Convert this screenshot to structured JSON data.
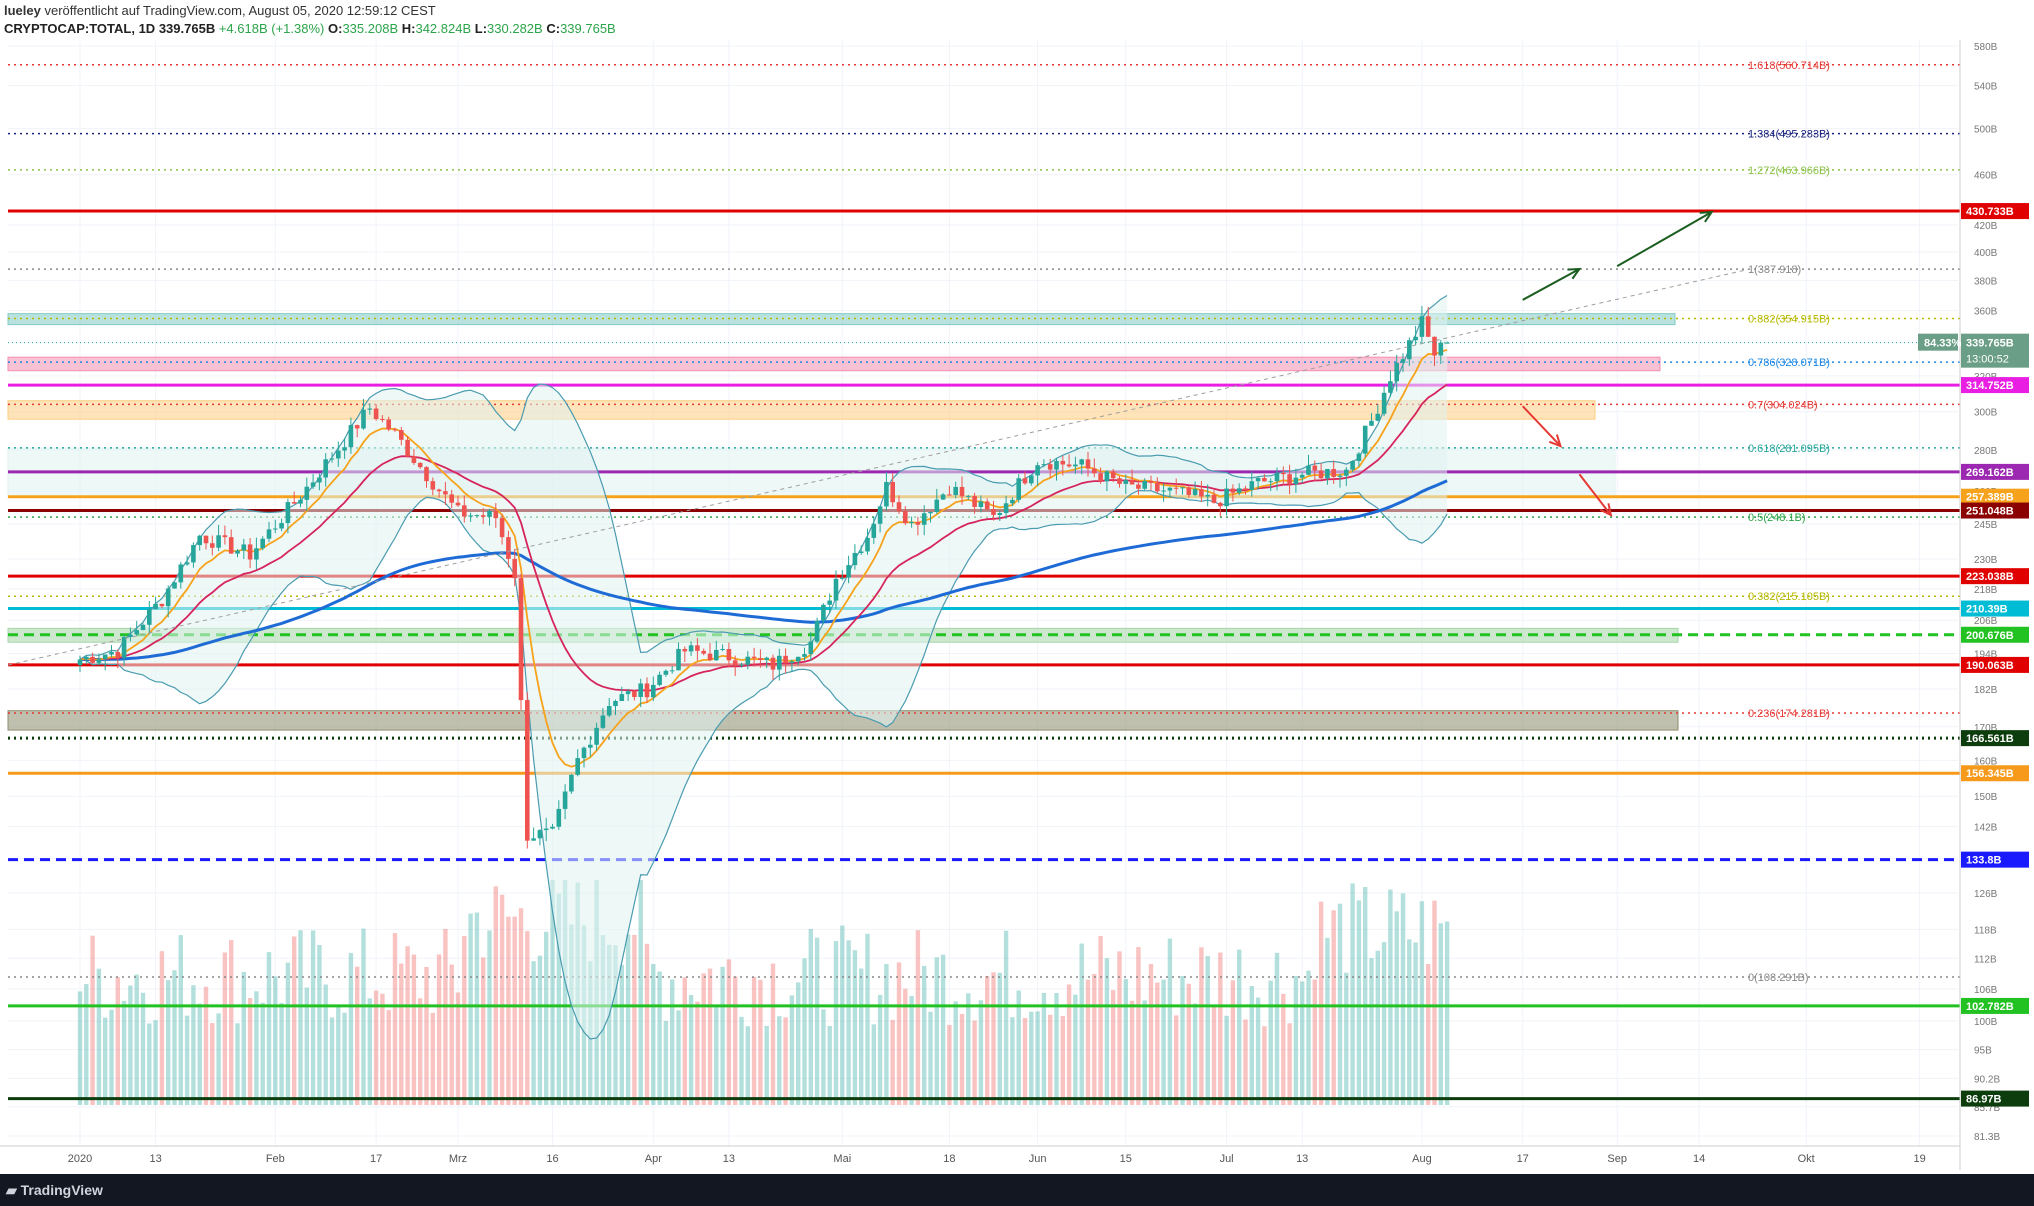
{
  "header": {
    "publisher_line": {
      "user": "lueley",
      "rest": " veröffentlicht auf TradingView.com, August 05, 2020 12:59:12 CEST"
    },
    "symbol": "CRYPTOCAP:TOTAL, 1D",
    "last": "339.765B",
    "change": "+4.618B (+1.38%)",
    "ohlc": [
      {
        "k": "O:",
        "v": "335.208B"
      },
      {
        "k": "H:",
        "v": "342.824B"
      },
      {
        "k": "L:",
        "v": "330.282B"
      },
      {
        "k": "C:",
        "v": "339.765B"
      }
    ]
  },
  "footer": {
    "brand": "TradingView"
  },
  "colors": {
    "up": "#26a69a",
    "down": "#ef5350",
    "ema_fast": "#f7a21b",
    "ema_mid": "#d6245c",
    "sma200": "#1e6bd6",
    "bollinger": "#4a9bb0",
    "volume_ma": "#f79a5c"
  },
  "chart_data": {
    "type": "candlestick",
    "title": "",
    "price_scale": "log",
    "ylim": [
      "81.3B",
      "580B"
    ],
    "y_ticks": [
      "580B",
      "540B",
      "500B",
      "460B",
      "420B",
      "400B",
      "380B",
      "360B",
      "340B",
      "320B",
      "300B",
      "280B",
      "260B",
      "245B",
      "230B",
      "218B",
      "206B",
      "194B",
      "182B",
      "170B",
      "160B",
      "150B",
      "142B",
      "134B",
      "126B",
      "118B",
      "112B",
      "106B",
      "100B",
      "95B",
      "90.2B",
      "85.7B",
      "81.3B"
    ],
    "x_ticks": [
      "2020",
      "13",
      "Feb",
      "17",
      "Mrz",
      "16",
      "Apr",
      "13",
      "Mai",
      "18",
      "Jun",
      "15",
      "Jul",
      "13",
      "Aug",
      "17",
      "Sep",
      "14",
      "Okt",
      "19"
    ],
    "horizontal_levels": [
      {
        "label": "1.618(560.714B)",
        "value": 560.714,
        "color": "#e53935",
        "style": "dotted",
        "kind": "fib"
      },
      {
        "label": "1.384(495.283B)",
        "value": 495.283,
        "color": "#1a237e",
        "style": "dotted",
        "kind": "fib"
      },
      {
        "label": "1.272(463.966B)",
        "value": 463.966,
        "color": "#8bc34a",
        "style": "dotted",
        "kind": "fib"
      },
      {
        "label": "430.733B",
        "value": 430.733,
        "color": "#e00000",
        "style": "solid",
        "kind": "axis"
      },
      {
        "label": "1(387.918)",
        "value": 387.918,
        "color": "#888888",
        "style": "dotted",
        "kind": "fib"
      },
      {
        "label": "0.882(354.915B)",
        "value": 354.915,
        "color": "#b5b800",
        "style": "dotted",
        "kind": "fib"
      },
      {
        "label": "0.786(328.071B)",
        "value": 328.071,
        "color": "#1e88e5",
        "style": "dotted",
        "kind": "fib"
      },
      {
        "label": "314.752B",
        "value": 314.752,
        "color": "#e91ee3",
        "style": "solid",
        "kind": "axis"
      },
      {
        "label": "0.7(304.024B)",
        "value": 304.024,
        "color": "#e53935",
        "style": "dotted",
        "kind": "fib"
      },
      {
        "label": "0.618(281.095B)",
        "value": 281.095,
        "color": "#26a69a",
        "style": "dotted",
        "kind": "fib"
      },
      {
        "label": "269.162B",
        "value": 269.162,
        "color": "#9c27b0",
        "style": "solid",
        "kind": "axis"
      },
      {
        "label": "257.389B",
        "value": 257.389,
        "color": "#f7a21b",
        "style": "solid",
        "kind": "axis"
      },
      {
        "label": "251.048B",
        "value": 251.048,
        "color": "#8b0000",
        "style": "solid",
        "kind": "axis"
      },
      {
        "label": "0.5(248.1B)",
        "value": 248.1,
        "color": "#2ca44a",
        "style": "dotted",
        "kind": "fib"
      },
      {
        "label": "223.038B",
        "value": 223.038,
        "color": "#e00000",
        "style": "solid",
        "kind": "axis"
      },
      {
        "label": "0.382(215.105B)",
        "value": 215.105,
        "color": "#b5b800",
        "style": "dotted",
        "kind": "fib"
      },
      {
        "label": "210.39B",
        "value": 210.39,
        "color": "#00bcd4",
        "style": "solid",
        "kind": "axis"
      },
      {
        "label": "200.676B",
        "value": 200.676,
        "color": "#22c222",
        "style": "dashed",
        "kind": "axis"
      },
      {
        "label": "190.063B",
        "value": 190.063,
        "color": "#e00000",
        "style": "solid",
        "kind": "axis"
      },
      {
        "label": "0.236(174.281B)",
        "value": 174.281,
        "color": "#e53935",
        "style": "dotted",
        "kind": "fib"
      },
      {
        "label": "166.561B",
        "value": 166.561,
        "color": "#0d3d0d",
        "style": "dotted",
        "kind": "axis"
      },
      {
        "label": "156.345B",
        "value": 156.345,
        "color": "#f79a1b",
        "style": "solid",
        "kind": "axis"
      },
      {
        "label": "133.8B",
        "value": 133.8,
        "color": "#1a1aff",
        "style": "dashed",
        "kind": "axis"
      },
      {
        "label": "0(108.291B)",
        "value": 108.291,
        "color": "#888888",
        "style": "dotted",
        "kind": "fib"
      },
      {
        "label": "102.782B",
        "value": 102.782,
        "color": "#22c222",
        "style": "solid",
        "kind": "axis"
      },
      {
        "label": "86.97B",
        "value": 86.97,
        "color": "#0d3d0d",
        "style": "solid",
        "kind": "axis"
      }
    ],
    "zones": [
      {
        "name": "teal-band",
        "low": 351,
        "high": 358,
        "color": "#80cbc4"
      },
      {
        "name": "pink-band",
        "low": 323,
        "high": 331,
        "color": "#f48fb1"
      },
      {
        "name": "orange-band",
        "low": 296,
        "high": 306,
        "color": "#ffcc80"
      },
      {
        "name": "light-band",
        "low": 257,
        "high": 281,
        "color": "#e0f2f1"
      },
      {
        "name": "green-band",
        "low": 198,
        "high": 203,
        "color": "#a5d6a7"
      },
      {
        "name": "olive-band",
        "low": 169,
        "high": 175,
        "color": "#8d8d6e"
      }
    ],
    "current_price_tag": {
      "value": 339.765,
      "label": "339.765B",
      "percent": "84.33%",
      "countdown": "13:00:52"
    },
    "close_series": [
      {
        "date": "2020-01-01",
        "close": 192
      },
      {
        "date": "2020-01-07",
        "close": 195
      },
      {
        "date": "2020-01-14",
        "close": 214
      },
      {
        "date": "2020-01-20",
        "close": 240
      },
      {
        "date": "2020-01-28",
        "close": 232
      },
      {
        "date": "2020-02-05",
        "close": 258
      },
      {
        "date": "2020-02-12",
        "close": 285
      },
      {
        "date": "2020-02-16",
        "close": 302
      },
      {
        "date": "2020-02-20",
        "close": 288
      },
      {
        "date": "2020-02-25",
        "close": 268
      },
      {
        "date": "2020-03-01",
        "close": 250
      },
      {
        "date": "2020-03-07",
        "close": 248
      },
      {
        "date": "2020-03-10",
        "close": 224
      },
      {
        "date": "2020-03-12",
        "close": 140
      },
      {
        "date": "2020-03-16",
        "close": 140
      },
      {
        "date": "2020-03-20",
        "close": 160
      },
      {
        "date": "2020-03-25",
        "close": 178
      },
      {
        "date": "2020-03-31",
        "close": 182
      },
      {
        "date": "2020-04-06",
        "close": 195
      },
      {
        "date": "2020-04-13",
        "close": 193
      },
      {
        "date": "2020-04-20",
        "close": 190
      },
      {
        "date": "2020-04-26",
        "close": 198
      },
      {
        "date": "2020-04-30",
        "close": 222
      },
      {
        "date": "2020-05-05",
        "close": 240
      },
      {
        "date": "2020-05-08",
        "close": 262
      },
      {
        "date": "2020-05-12",
        "close": 245
      },
      {
        "date": "2020-05-18",
        "close": 262
      },
      {
        "date": "2020-05-25",
        "close": 248
      },
      {
        "date": "2020-06-01",
        "close": 275
      },
      {
        "date": "2020-06-08",
        "close": 272
      },
      {
        "date": "2020-06-15",
        "close": 262
      },
      {
        "date": "2020-06-22",
        "close": 260
      },
      {
        "date": "2020-06-29",
        "close": 255
      },
      {
        "date": "2020-07-06",
        "close": 264
      },
      {
        "date": "2020-07-13",
        "close": 268
      },
      {
        "date": "2020-07-20",
        "close": 270
      },
      {
        "date": "2020-07-24",
        "close": 295
      },
      {
        "date": "2020-07-27",
        "close": 320
      },
      {
        "date": "2020-08-01",
        "close": 352
      },
      {
        "date": "2020-08-03",
        "close": 333
      },
      {
        "date": "2020-08-05",
        "close": 339.765
      }
    ],
    "annotations": [
      {
        "type": "arrow",
        "color": "#1b5e20",
        "from": [
          "2020-08-17",
          367
        ],
        "to": [
          "2020-08-26",
          388
        ]
      },
      {
        "type": "arrow",
        "color": "#1b5e20",
        "from": [
          "2020-09-01",
          390
        ],
        "to": [
          "2020-09-16",
          430
        ]
      },
      {
        "type": "arrow",
        "color": "#e53935",
        "from": [
          "2020-08-17",
          303
        ],
        "to": [
          "2020-08-23",
          282
        ]
      },
      {
        "type": "arrow",
        "color": "#e53935",
        "from": [
          "2020-08-26",
          268
        ],
        "to": [
          "2020-08-31",
          249
        ]
      }
    ]
  }
}
